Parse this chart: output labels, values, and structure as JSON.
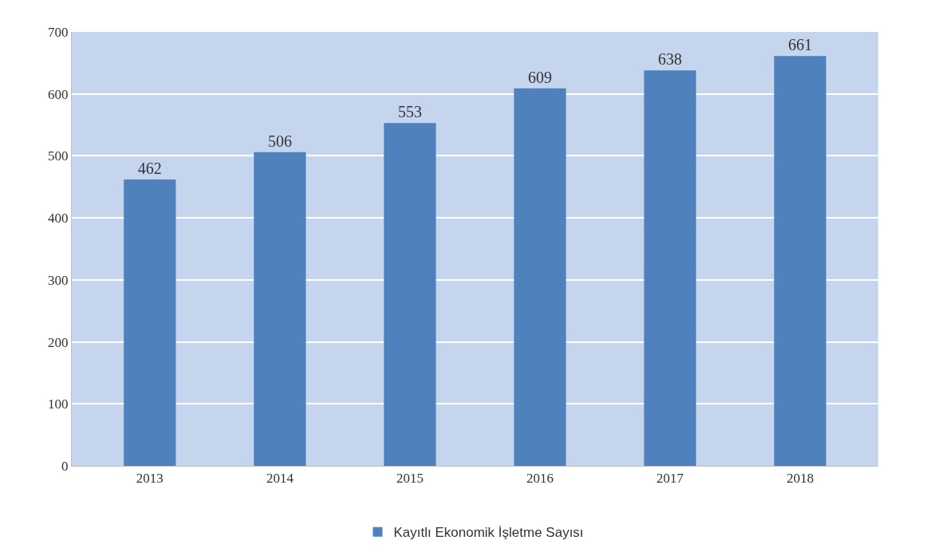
{
  "chart_data": {
    "type": "bar",
    "categories": [
      "2013",
      "2014",
      "2015",
      "2016",
      "2017",
      "2018"
    ],
    "series": [
      {
        "name": "Kayıtlı Ekonomik İşletme Sayısı",
        "color": "#4f81bd",
        "values": [
          462,
          506,
          553,
          609,
          638,
          661
        ]
      }
    ],
    "ylim": [
      0,
      700
    ],
    "yticks": [
      0,
      100,
      200,
      300,
      400,
      500,
      600,
      700
    ],
    "grid": "y",
    "legend": "bottom",
    "data_labels": true
  }
}
